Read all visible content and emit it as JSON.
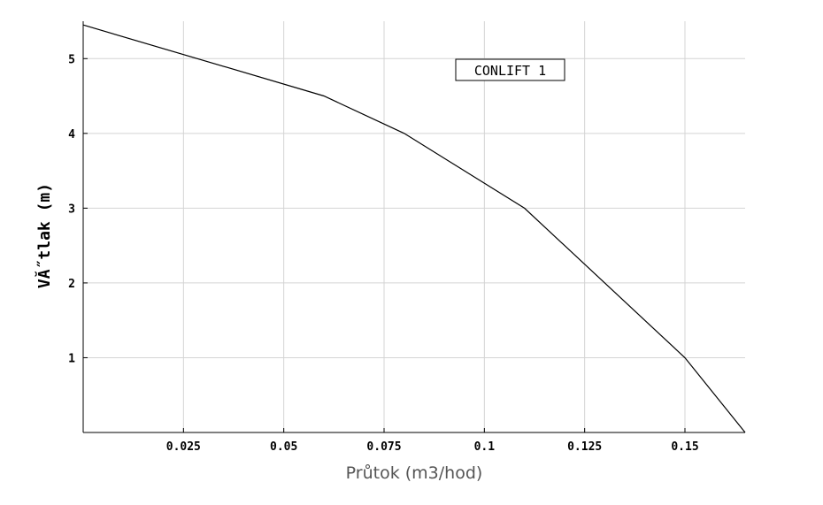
{
  "chart_data": {
    "type": "line",
    "title": "",
    "xlabel": "Průtok (m3/hod)",
    "ylabel": "VĂ˝tlak (m)",
    "xlim": [
      0,
      0.165
    ],
    "ylim": [
      0,
      5.5
    ],
    "grid": true,
    "legend_placement": "top-right",
    "x_ticks": [
      {
        "value": 0.025,
        "label": "0.025"
      },
      {
        "value": 0.05,
        "label": "0.05"
      },
      {
        "value": 0.075,
        "label": "0.075"
      },
      {
        "value": 0.1,
        "label": "0.1"
      },
      {
        "value": 0.125,
        "label": "0.125"
      },
      {
        "value": 0.15,
        "label": "0.15"
      }
    ],
    "y_ticks": [
      {
        "value": 1,
        "label": "1"
      },
      {
        "value": 2,
        "label": "2"
      },
      {
        "value": 3,
        "label": "3"
      },
      {
        "value": 4,
        "label": "4"
      },
      {
        "value": 5,
        "label": "5"
      }
    ],
    "series": [
      {
        "name": "CONLIFT 1",
        "color": "#000000",
        "x": [
          0,
          0.06,
          0.08,
          0.11,
          0.15,
          0.165
        ],
        "y": [
          5.45,
          4.5,
          4.0,
          3.0,
          1.0,
          0.0
        ]
      }
    ]
  }
}
